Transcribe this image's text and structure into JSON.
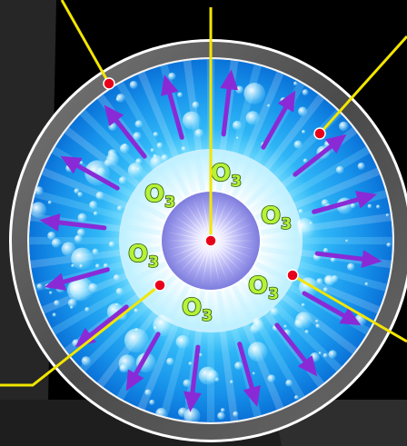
{
  "diagram": {
    "ozone_labels": [
      {
        "symbol": "O",
        "subscript": "3"
      },
      {
        "symbol": "O",
        "subscript": "3"
      },
      {
        "symbol": "O",
        "subscript": "3"
      },
      {
        "symbol": "O",
        "subscript": "3"
      },
      {
        "symbol": "O",
        "subscript": "3"
      },
      {
        "symbol": "O",
        "subscript": "3"
      }
    ],
    "colors": {
      "background": "#000000",
      "backdrop_panel": "#262626",
      "outer_ring": "#5a5a5a",
      "ring_highlight": "#e8e8e8",
      "water_outer": "#0a72d8",
      "water_mid": "#2fb6f6",
      "inner_core": "#a9a7f0",
      "arrows": "#8a2ad6",
      "leader_lines": "#f2e600",
      "callout_dots": "#e8001a",
      "ozone_text": "#b6f23a"
    },
    "arrow_count": 16,
    "callout_count": 5
  }
}
